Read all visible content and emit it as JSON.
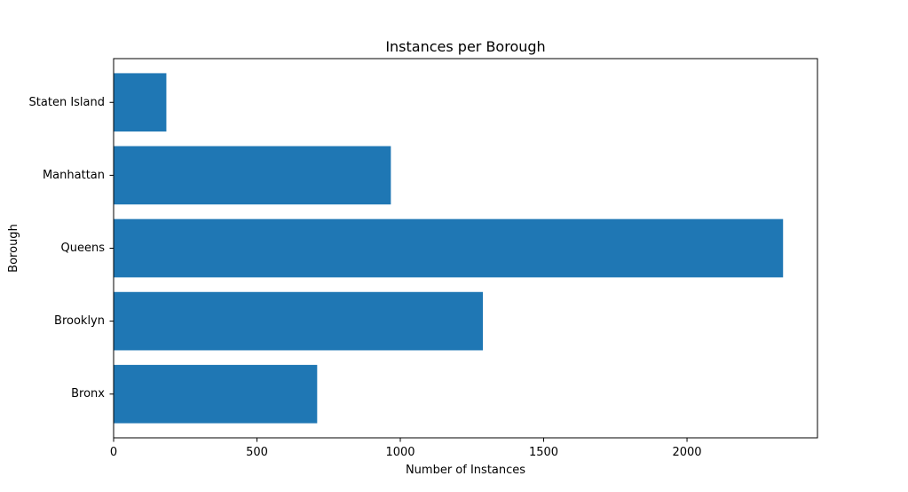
{
  "chart_data": {
    "type": "bar",
    "orientation": "horizontal",
    "title": "Instances per Borough",
    "xlabel": "Number of Instances",
    "ylabel": "Borough",
    "categories": [
      "Bronx",
      "Brooklyn",
      "Queens",
      "Manhattan",
      "Staten Island"
    ],
    "values": [
      710,
      1288,
      2335,
      967,
      184
    ],
    "xlim": [
      0,
      2455
    ],
    "xticks": [
      0,
      500,
      1000,
      1500,
      2000
    ],
    "bar_color": "#1f77b4",
    "grid": false
  }
}
